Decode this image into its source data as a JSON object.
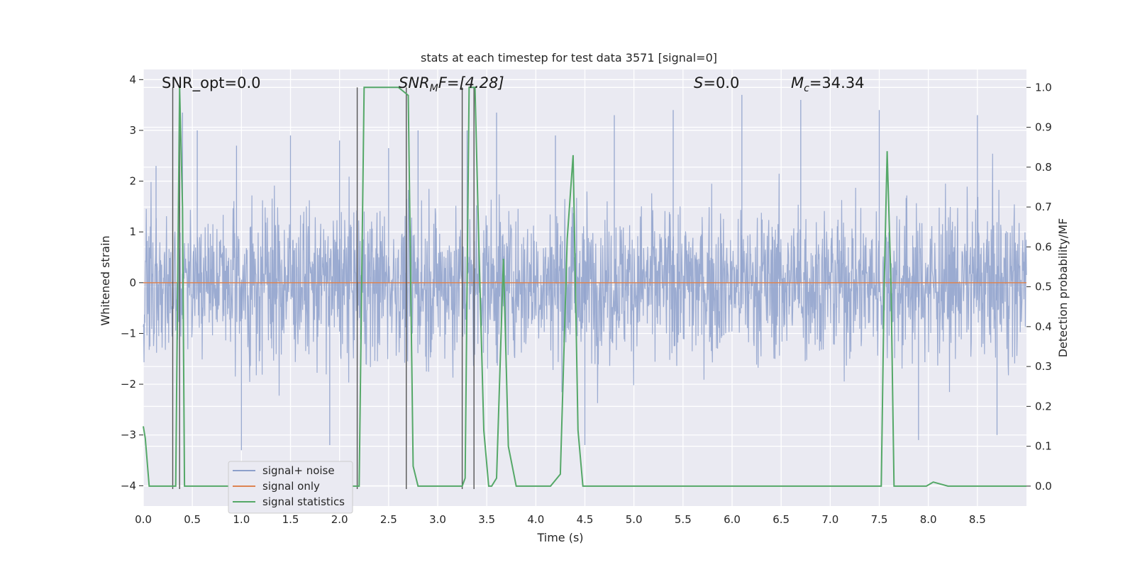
{
  "chart_data": {
    "type": "line",
    "title": "stats at each timestep for test data 3571 [signal=0]",
    "xlabel": "Time (s)",
    "ylabel": "Whitened strain",
    "ylabel_right": "Detection probability/MF",
    "xlim": [
      0.0,
      9.0
    ],
    "ylim": [
      -4.4,
      4.2
    ],
    "ylim_right": [
      -0.05,
      1.045
    ],
    "x_ticks": [
      "0.0",
      "0.5",
      "1.0",
      "1.5",
      "2.0",
      "2.5",
      "3.0",
      "3.5",
      "4.0",
      "4.5",
      "5.0",
      "5.5",
      "6.0",
      "6.5",
      "7.0",
      "7.5",
      "8.0",
      "8.5"
    ],
    "y_ticks": [
      "4",
      "3",
      "2",
      "1",
      "0",
      "−1",
      "−2",
      "−3",
      "−4"
    ],
    "y_ticks_right": [
      "1.0",
      "0.9",
      "0.8",
      "0.7",
      "0.6",
      "0.5",
      "0.4",
      "0.3",
      "0.2",
      "0.1",
      "0.0"
    ],
    "grid": true,
    "legend_position": "lower-left",
    "annotations": {
      "snr_opt": "SNR_opt=0.0",
      "snr_mf_main": "SNR",
      "snr_mf_sub": "M",
      "snr_mf_rest": "F=[4.28]",
      "s_main": "S",
      "s_rest": "=0.0",
      "mc_main": "M",
      "mc_sub": "c",
      "mc_rest": "=34.34"
    },
    "series": [
      {
        "name": "signal+ noise",
        "color": "#8da0cb",
        "description_kind": "noise",
        "envelope_typical": [
          -1.6,
          1.5
        ],
        "peaks": [
          [
            0.13,
            2.3
          ],
          [
            0.4,
            3.35
          ],
          [
            0.55,
            3.0
          ],
          [
            0.95,
            2.7
          ],
          [
            1.0,
            -3.3
          ],
          [
            1.5,
            2.9
          ],
          [
            1.9,
            -3.2
          ],
          [
            2.0,
            2.8
          ],
          [
            2.5,
            2.65
          ],
          [
            2.8,
            3.0
          ],
          [
            3.3,
            3.0
          ],
          [
            3.6,
            3.35
          ],
          [
            4.2,
            2.9
          ],
          [
            4.5,
            -3.2
          ],
          [
            4.8,
            3.3
          ],
          [
            5.4,
            3.4
          ],
          [
            6.1,
            3.7
          ],
          [
            6.7,
            3.6
          ],
          [
            7.5,
            3.4
          ],
          [
            7.9,
            -3.1
          ],
          [
            8.5,
            3.3
          ],
          [
            8.7,
            -3.0
          ]
        ]
      },
      {
        "name": "signal only",
        "color": "#dd8452",
        "x": [
          0.0,
          9.0
        ],
        "y": [
          0.0,
          0.0
        ]
      },
      {
        "name": "signal statistics",
        "color": "#55a868",
        "axis": "right",
        "x": [
          0.0,
          0.02,
          0.06,
          0.12,
          0.25,
          0.3,
          0.31,
          0.33,
          0.37,
          0.4,
          0.42,
          0.46,
          0.5,
          0.8,
          1.2,
          1.6,
          2.0,
          2.15,
          2.2,
          2.25,
          2.3,
          2.5,
          2.6,
          2.65,
          2.7,
          2.75,
          2.8,
          3.0,
          3.2,
          3.25,
          3.28,
          3.32,
          3.35,
          3.38,
          3.42,
          3.47,
          3.52,
          3.55,
          3.6,
          3.67,
          3.72,
          3.8,
          4.0,
          4.15,
          4.25,
          4.32,
          4.38,
          4.43,
          4.48,
          4.6,
          5.0,
          6.0,
          7.0,
          7.48,
          7.52,
          7.55,
          7.58,
          7.62,
          7.65,
          7.7,
          7.9,
          7.98,
          8.05,
          8.2,
          8.5,
          9.0
        ],
        "y": [
          0.15,
          0.12,
          0.0,
          0.0,
          0.0,
          0.0,
          0.0,
          0.0,
          1.0,
          0.7,
          0.0,
          0.0,
          0.0,
          0.0,
          0.0,
          0.0,
          0.0,
          0.0,
          0.0,
          1.0,
          1.0,
          1.0,
          1.0,
          0.99,
          0.98,
          0.05,
          0.0,
          0.0,
          0.0,
          0.0,
          0.02,
          1.0,
          1.0,
          1.0,
          0.6,
          0.14,
          0.0,
          0.0,
          0.02,
          0.57,
          0.1,
          0.0,
          0.0,
          0.0,
          0.03,
          0.62,
          0.83,
          0.14,
          0.0,
          0.0,
          0.0,
          0.0,
          0.0,
          0.0,
          0.0,
          0.5,
          0.84,
          0.5,
          0.0,
          0.0,
          0.0,
          0.0,
          0.01,
          0.0,
          0.0,
          0.0
        ]
      }
    ],
    "vertical_markers": [
      0.3,
      0.37,
      2.18,
      2.68,
      3.25,
      3.37
    ]
  }
}
